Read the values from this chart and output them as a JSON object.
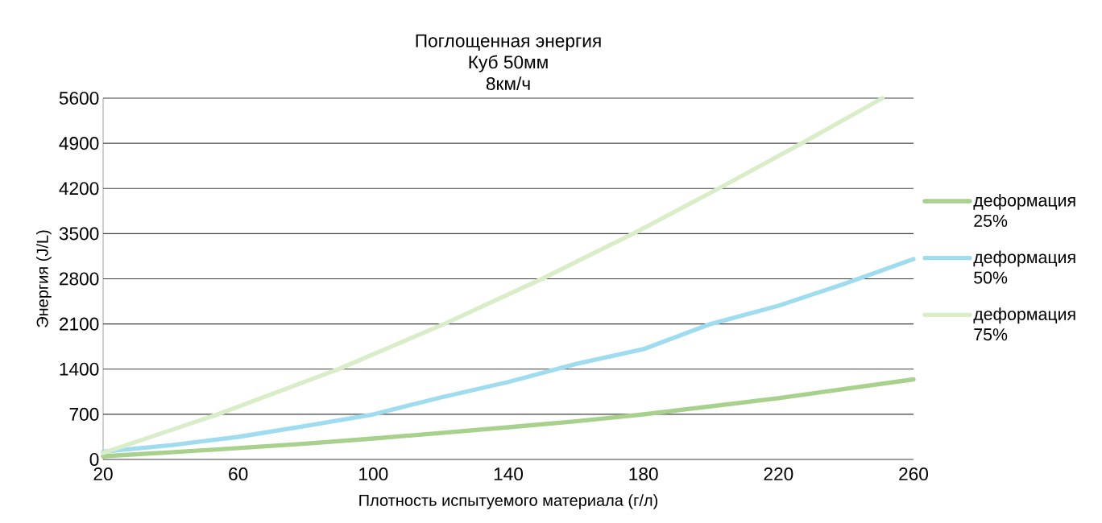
{
  "chart_data": {
    "type": "line",
    "title": "Поглощенная энергия\nКуб 50мм\n8км/ч",
    "xlabel": "Плотность испытуемого материала (г/л)",
    "ylabel": "Энергия (J/L)",
    "xlim": [
      20,
      260
    ],
    "xticks": [
      20,
      60,
      100,
      140,
      180,
      220,
      260
    ],
    "ylim": [
      0,
      5600
    ],
    "yticks": [
      0,
      700,
      1400,
      2100,
      2800,
      3500,
      4200,
      4900,
      5600
    ],
    "grid": "y",
    "legend": "right",
    "marker": "none",
    "line_style": "solid",
    "series": [
      {
        "name": "деформация 25%",
        "color": "#a9d18e",
        "x": [
          20,
          40,
          60,
          80,
          100,
          120,
          140,
          160,
          180,
          200,
          220,
          240,
          260
        ],
        "values": [
          50,
          110,
          175,
          245,
          324,
          410,
          499,
          590,
          698,
          823,
          948,
          1097,
          1241
        ]
      },
      {
        "name": "деформация 50%",
        "color": "#9fdcef",
        "x": [
          20,
          40,
          60,
          80,
          100,
          120,
          140,
          160,
          180,
          200,
          220,
          240,
          260
        ],
        "values": [
          120,
          220,
          349,
          520,
          698,
          960,
          1200,
          1480,
          1709,
          2100,
          2382,
          2730,
          3106
        ]
      },
      {
        "name": "деформация 75%",
        "color": "#d9edc9",
        "x": [
          20,
          54,
          89.7,
          121,
          150,
          177,
          202.3,
          226.9,
          250.8
        ],
        "values": [
          100,
          700,
          1400,
          2100,
          2800,
          3500,
          4200,
          4900,
          5600
        ]
      }
    ]
  }
}
